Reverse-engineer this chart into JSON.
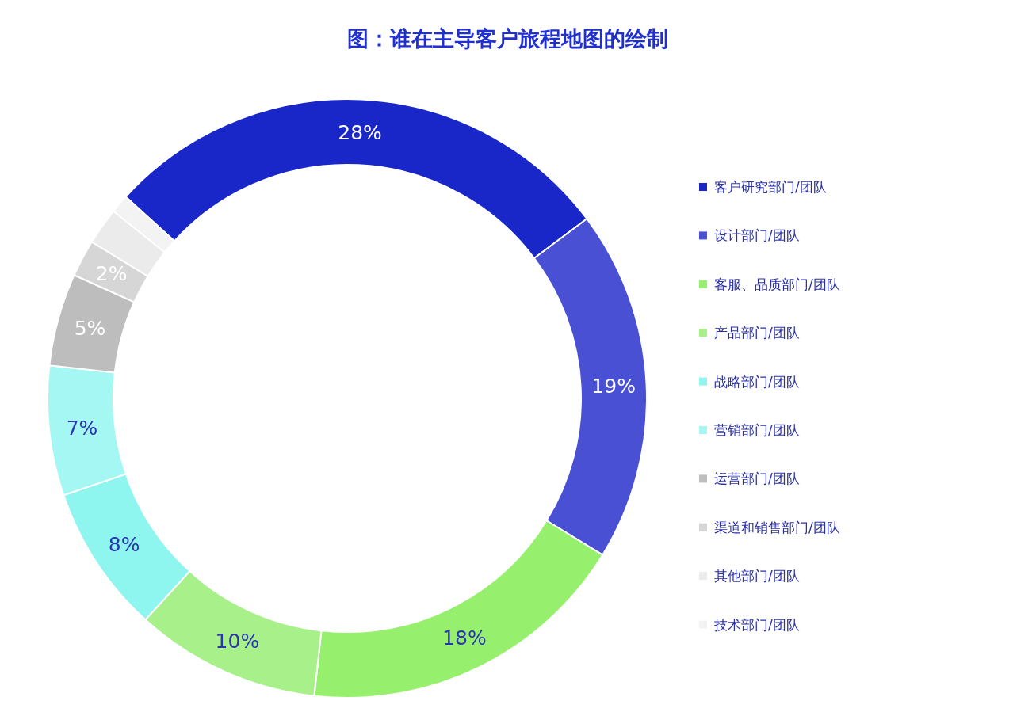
{
  "chart_data": {
    "type": "donut",
    "title": "图：谁在主导客户旅程地图的绘制",
    "categories": [
      "客户研究部门/团队",
      "设计部门/团队",
      "客服、品质部门/团队",
      "产品部门/团队",
      "战略部门/团队",
      "营销部门/团队",
      "运营部门/团队",
      "渠道和销售部门/团队",
      "其他部门/团队",
      "技术部门/团队"
    ],
    "values": [
      28,
      19,
      18,
      10,
      8,
      7,
      5,
      2,
      2,
      1
    ],
    "colors": [
      "#1a27c8",
      "#4a50d4",
      "#96f06e",
      "#a8f08a",
      "#8ef5ef",
      "#a4f7f2",
      "#bdbdbd",
      "#d6d6d6",
      "#ebebeb",
      "#f3f3f3"
    ],
    "value_labels": [
      "28%",
      "19%",
      "18%",
      "10%",
      "8%",
      "7%",
      "5%",
      "2%",
      null,
      null
    ],
    "legend": "right"
  }
}
